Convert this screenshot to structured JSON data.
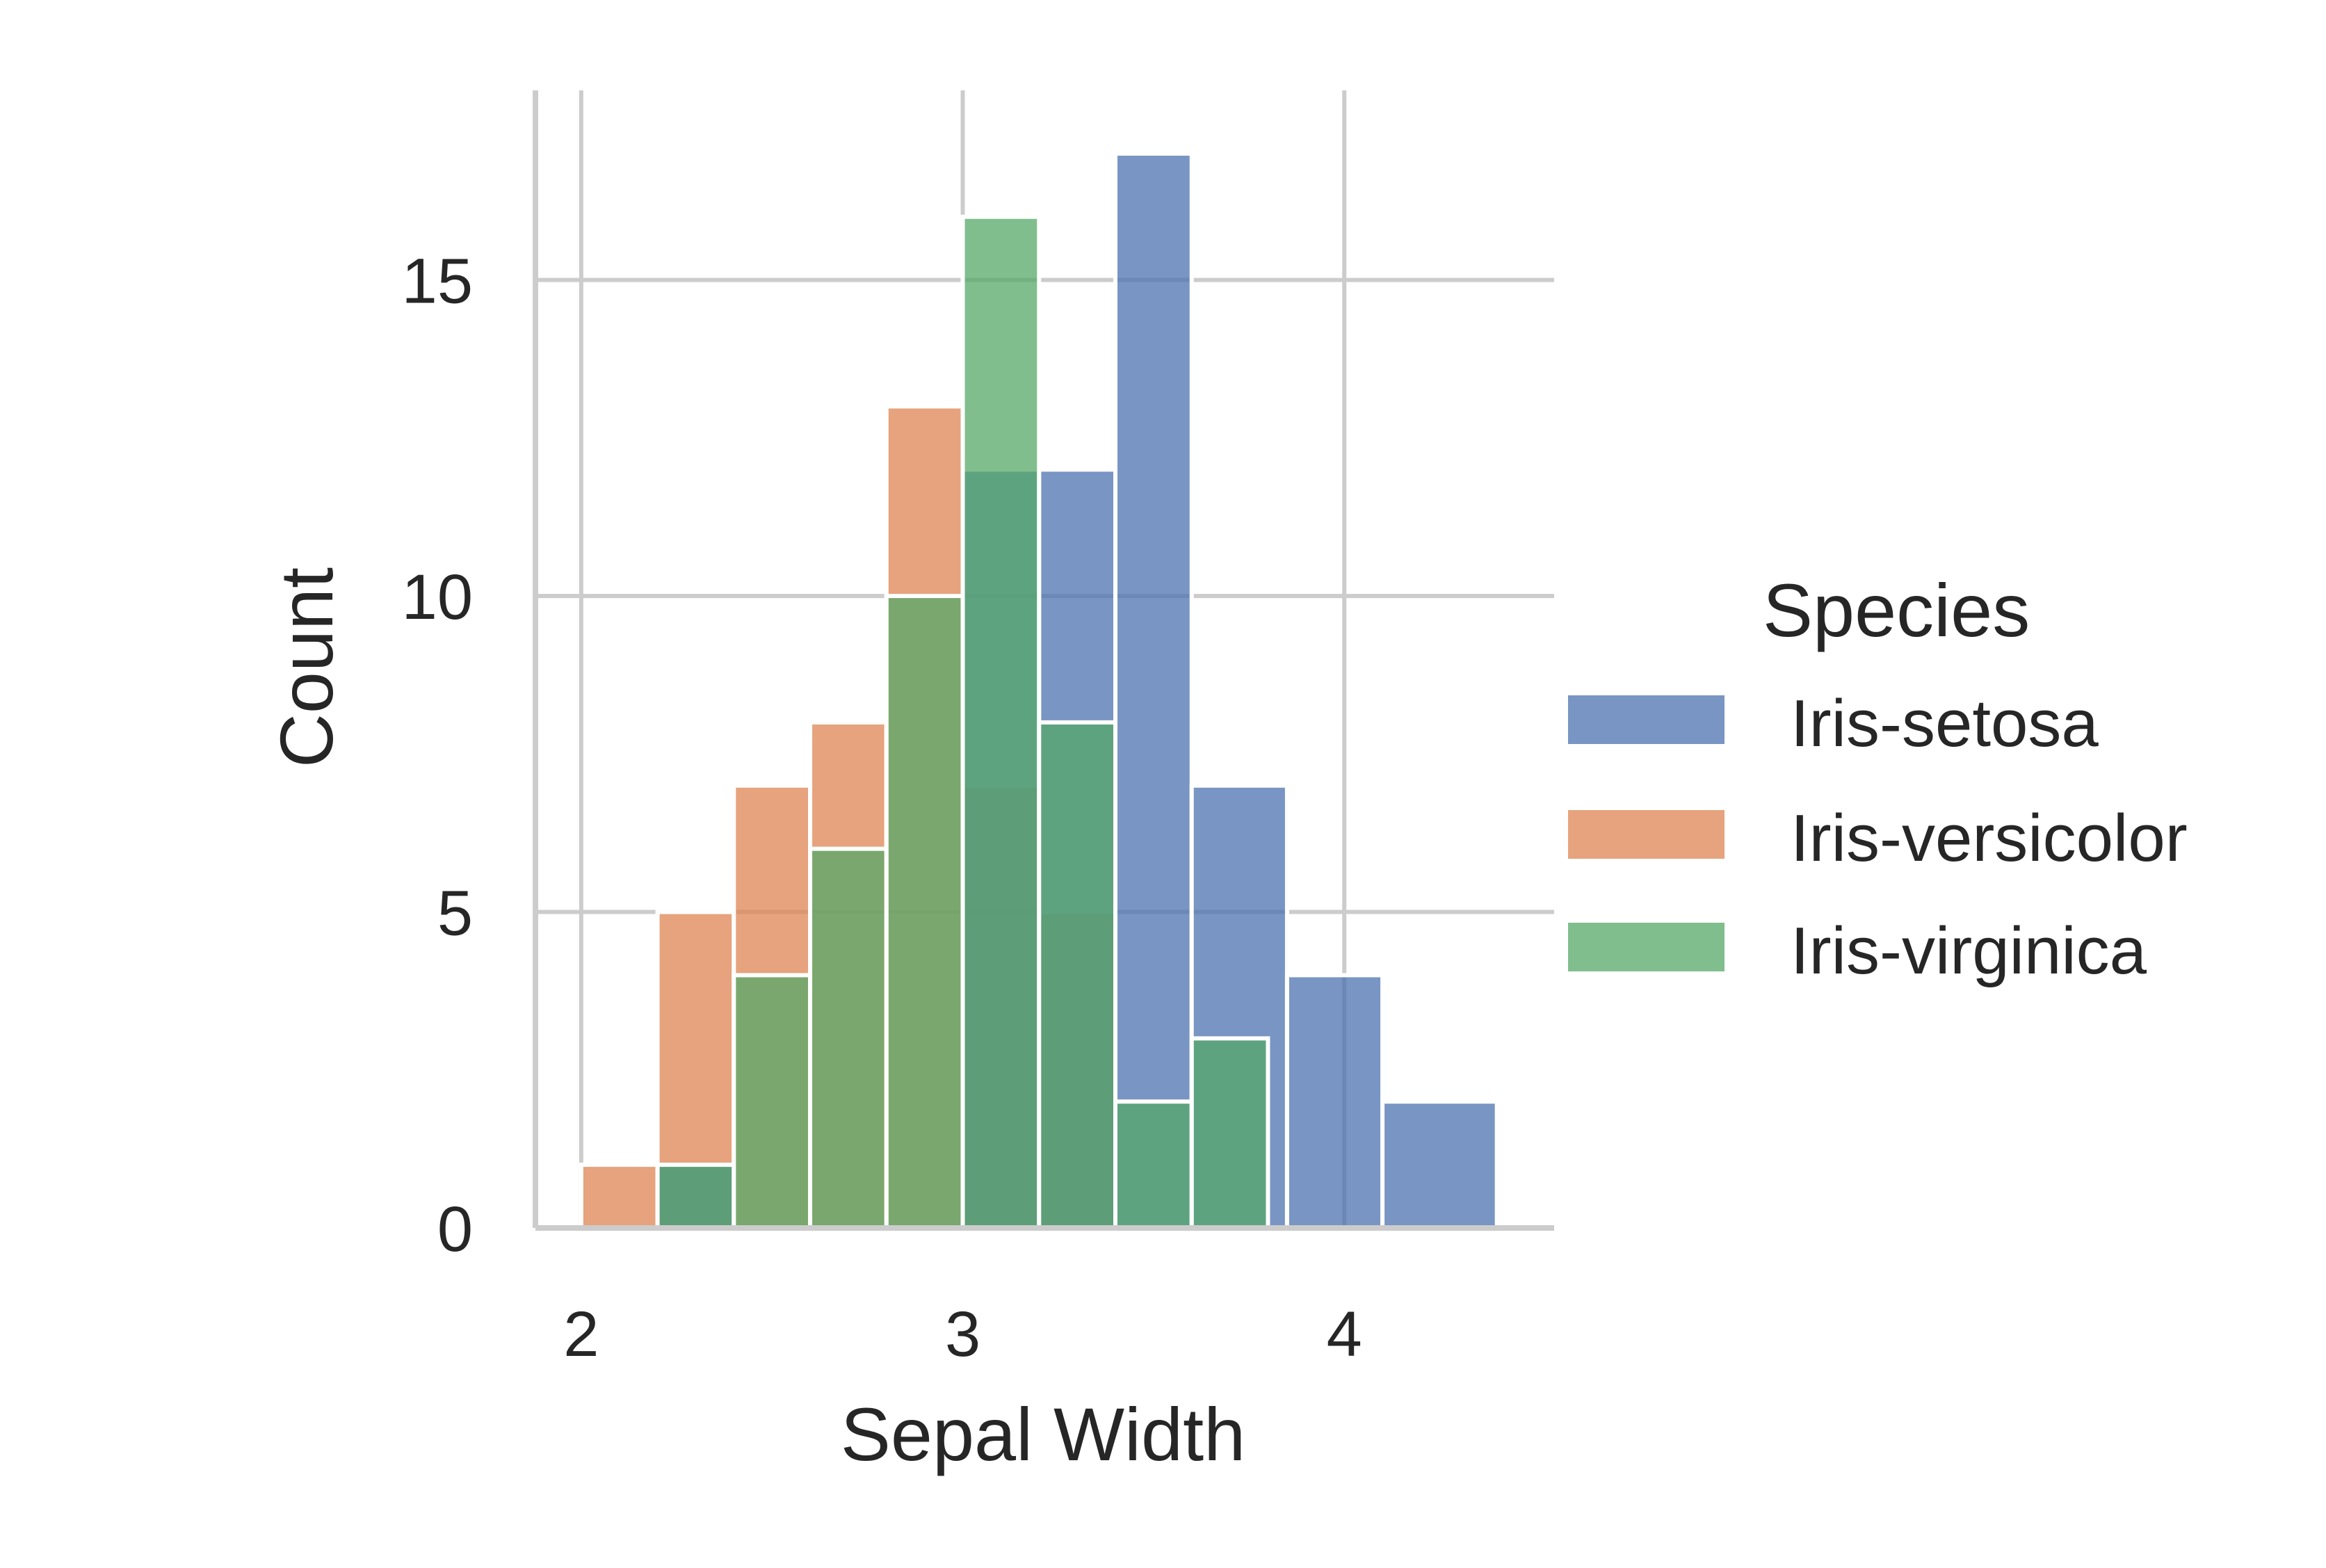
{
  "chart_data": {
    "type": "bar",
    "xlabel": "Sepal Width",
    "ylabel": "Count",
    "xlim": [
      1.88,
      4.55
    ],
    "ylim": [
      0,
      18
    ],
    "xticks": [
      "2",
      "3",
      "4"
    ],
    "yticks": [
      "0",
      "5",
      "10",
      "15"
    ],
    "grid": true,
    "legend": {
      "title": "Species",
      "placement": "right",
      "entries": [
        "Iris-setosa",
        "Iris-versicolor",
        "Iris-virginica"
      ]
    },
    "series": [
      {
        "name": "Iris-versicolor",
        "color": "#dd8452",
        "bins": [
          {
            "x0": 2.0,
            "x1": 2.2,
            "count": 1
          },
          {
            "x0": 2.2,
            "x1": 2.4,
            "count": 5
          },
          {
            "x0": 2.4,
            "x1": 2.6,
            "count": 7
          },
          {
            "x0": 2.6,
            "x1": 2.8,
            "count": 8
          },
          {
            "x0": 2.8,
            "x1": 3.0,
            "count": 13
          },
          {
            "x0": 3.0,
            "x1": 3.2,
            "count": 7
          },
          {
            "x0": 3.2,
            "x1": 3.4,
            "count": 5
          }
        ]
      },
      {
        "name": "Iris-setosa",
        "color": "#4c72b0",
        "bins": [
          {
            "x0": 2.2,
            "x1": 2.4,
            "count": 1
          },
          {
            "x0": 3.0,
            "x1": 3.2,
            "count": 12
          },
          {
            "x0": 3.2,
            "x1": 3.4,
            "count": 12
          },
          {
            "x0": 3.4,
            "x1": 3.6,
            "count": 17
          },
          {
            "x0": 3.6,
            "x1": 3.85,
            "count": 7
          },
          {
            "x0": 3.85,
            "x1": 4.1,
            "count": 4
          },
          {
            "x0": 4.1,
            "x1": 4.4,
            "count": 2
          }
        ]
      },
      {
        "name": "Iris-virginica",
        "color": "#55a868",
        "bins": [
          {
            "x0": 2.2,
            "x1": 2.4,
            "count": 1
          },
          {
            "x0": 2.4,
            "x1": 2.6,
            "count": 4
          },
          {
            "x0": 2.6,
            "x1": 2.8,
            "count": 6
          },
          {
            "x0": 2.8,
            "x1": 3.0,
            "count": 10
          },
          {
            "x0": 3.0,
            "x1": 3.2,
            "count": 16
          },
          {
            "x0": 3.2,
            "x1": 3.4,
            "count": 8
          },
          {
            "x0": 3.4,
            "x1": 3.6,
            "count": 2
          },
          {
            "x0": 3.6,
            "x1": 3.8,
            "count": 3
          }
        ]
      }
    ]
  }
}
